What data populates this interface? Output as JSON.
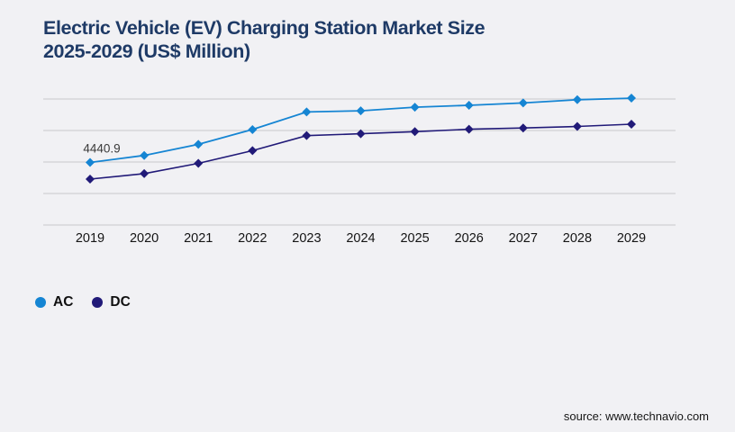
{
  "title": {
    "line1": "Electric Vehicle (EV) Charging Station Market Size",
    "line2": "2025-2029 (US$ Million)"
  },
  "colors": {
    "background": "#f1f1f4",
    "title": "#1e3a66",
    "ac": "#1585d3",
    "dc": "#211a78",
    "gridline": "#c9c9cc",
    "axis_label": "#141414",
    "annotation": "#3a3a3a",
    "legend_text": "#101010",
    "source_text": "#161616"
  },
  "chart_data": {
    "type": "line",
    "title": "Electric Vehicle (EV) Charging Station Market Size 2025-2029 (US$ Million)",
    "xlabel": "",
    "ylabel": "",
    "x": [
      "2019",
      "2020",
      "2021",
      "2022",
      "2023",
      "2024",
      "2025",
      "2026",
      "2027",
      "2028",
      "2029"
    ],
    "series": [
      {
        "name": "AC",
        "color": "#1585d3",
        "marker": "diamond",
        "values": [
          4440.9,
          4940,
          5730,
          6780,
          8030,
          8110,
          8370,
          8500,
          8670,
          8900,
          9010
        ]
      },
      {
        "name": "DC",
        "color": "#211a78",
        "marker": "diamond",
        "values": [
          3260,
          3650,
          4380,
          5280,
          6350,
          6480,
          6630,
          6800,
          6890,
          7000,
          7160
        ]
      }
    ],
    "annotation": {
      "text": "4440.9",
      "series": "AC",
      "year": "2019"
    },
    "ylim": [
      0,
      8950
    ],
    "n_gridlines": 5,
    "grid": "horizontal",
    "y_axis_tick_labels": "none",
    "legend_position": "bottom-left"
  },
  "legend": [
    {
      "label": "AC",
      "color": "#1585d3"
    },
    {
      "label": "DC",
      "color": "#211a78"
    }
  ],
  "source": {
    "text": "source: www.technavio.com"
  }
}
